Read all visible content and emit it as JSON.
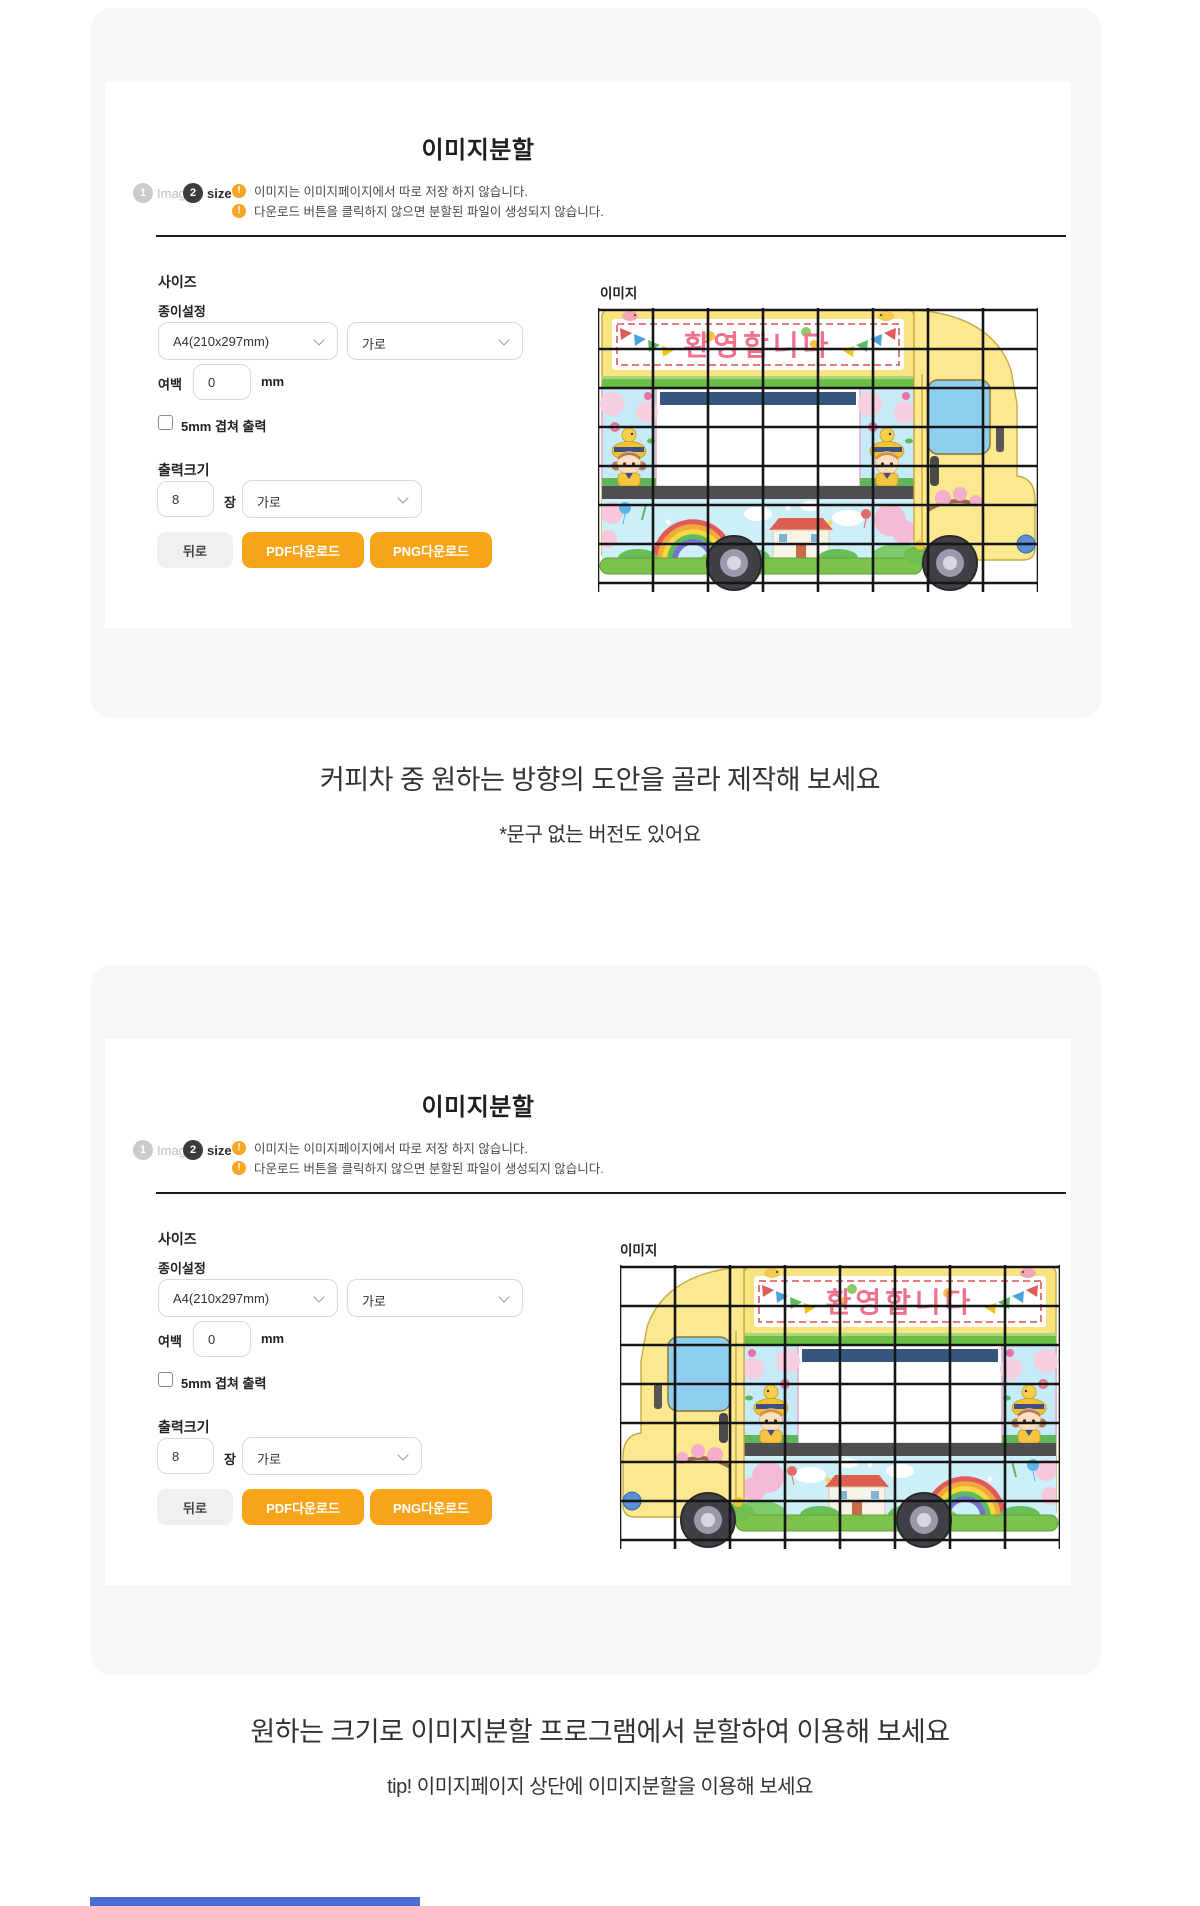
{
  "panel_common": {
    "title": "이미지분할",
    "steps": [
      {
        "num": "1",
        "label": "Image"
      },
      {
        "num": "2",
        "label": "size"
      }
    ],
    "warning_icon": "!",
    "warnings": [
      "이미지는 이미지페이지에서 따로 저장 하지 않습니다.",
      "다운로드 버튼을 클릭하지 않으면 분할된 파일이 생성되지 않습니다."
    ],
    "form": {
      "size_heading": "사이즈",
      "paper_label": "종이설정",
      "paper_select_value": "A4(210x297mm)",
      "orientation_select_value": "가로",
      "margin_label": "여백",
      "margin_value": "0",
      "margin_unit": "mm",
      "overlap_checkbox_label": "5mm 겹쳐 출력",
      "overlap_checked": false,
      "output_heading": "출력크기",
      "output_count_value": "8",
      "output_count_unit": "장",
      "output_orientation_value": "가로",
      "back_button": "뒤로",
      "pdf_button": "PDF다운로드",
      "png_button": "PNG다운로드"
    },
    "image_label": "이미지",
    "truck_banner_text": "환영합니다"
  },
  "panels": [
    {
      "truck_direction": "right"
    },
    {
      "truck_direction": "left"
    }
  ],
  "captions": {
    "first_line1": "커피차 중 원하는 방향의 도안을 골라 제작해 보세요",
    "first_line2": "*문구 없는 버전도 있어요",
    "second_line1": "원하는 크기로 이미지분할 프로그램에서 분할하여 이용해 보세요",
    "second_line2": "tip! 이미지페이지 상단에 이미지분할을 이용해 보세요"
  },
  "colors": {
    "card_bg": "#f7f7f8",
    "accent_yellow": "#F7A418",
    "warning_icon": "#F5A623",
    "step_active": "#3b3b3b",
    "step_inactive": "#cbcbcb",
    "grid_line": "#161616",
    "banner_text_pink": "#F0718C",
    "truck_body_yellow": "#FBE48A",
    "blue_bar": "#4c6ed3"
  }
}
